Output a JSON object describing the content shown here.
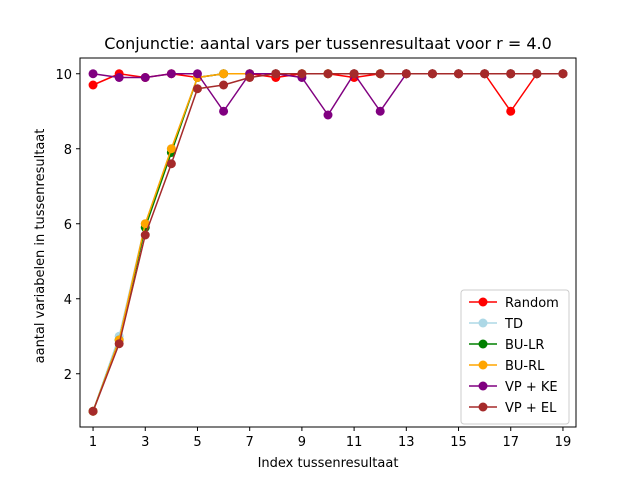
{
  "chart_data": {
    "type": "line",
    "title": "Conjunctie: aantal vars per tussenresultaat voor r = 4.0",
    "xlabel": "Index tussenresultaat",
    "ylabel": "aantal variabelen in tussenresultaat",
    "x": [
      1,
      2,
      3,
      4,
      5,
      6,
      7,
      8,
      9,
      10,
      11,
      12,
      13,
      14,
      15,
      16,
      17,
      18,
      19
    ],
    "xlim": [
      0.5,
      19.5
    ],
    "ylim": [
      0.58,
      10.42
    ],
    "xticks": [
      "1",
      "3",
      "5",
      "7",
      "9",
      "11",
      "13",
      "15",
      "17",
      "19"
    ],
    "yticks": [
      "2",
      "4",
      "6",
      "8",
      "10"
    ],
    "grid": false,
    "legend_position": "lower right",
    "series": [
      {
        "name": "Random",
        "color": "#ff0000",
        "values": [
          9.7,
          10,
          9.9,
          10,
          9.9,
          10,
          10,
          9.9,
          10,
          10,
          9.9,
          10,
          10,
          10,
          10,
          10,
          9.0,
          10,
          10
        ]
      },
      {
        "name": "TD",
        "color": "#add8e6",
        "values": [
          1,
          3,
          6,
          8,
          9.9,
          10,
          10,
          10,
          10,
          10,
          10,
          10,
          10,
          10,
          10,
          10,
          10,
          10,
          10
        ]
      },
      {
        "name": "BU-LR",
        "color": "#008000",
        "values": [
          1,
          2.9,
          5.9,
          7.9,
          9.9,
          10,
          10,
          10,
          10,
          10,
          10,
          10,
          10,
          10,
          10,
          10,
          10,
          10,
          10
        ]
      },
      {
        "name": "BU-RL",
        "color": "#ffa500",
        "values": [
          1,
          2.9,
          6,
          8,
          9.9,
          10,
          10,
          10,
          10,
          10,
          10,
          10,
          10,
          10,
          10,
          10,
          10,
          10,
          10
        ]
      },
      {
        "name": "VP + KE",
        "color": "#800080",
        "values": [
          10,
          9.9,
          9.9,
          10,
          10,
          9.0,
          10,
          10,
          9.9,
          8.9,
          10,
          9.0,
          10,
          10,
          10,
          10,
          10,
          10,
          10
        ]
      },
      {
        "name": "VP + EL",
        "color": "#a52a2a",
        "values": [
          1,
          2.8,
          5.7,
          7.6,
          9.6,
          9.7,
          9.9,
          10,
          10,
          10,
          10,
          10,
          10,
          10,
          10,
          10,
          10,
          10,
          10
        ]
      }
    ]
  }
}
